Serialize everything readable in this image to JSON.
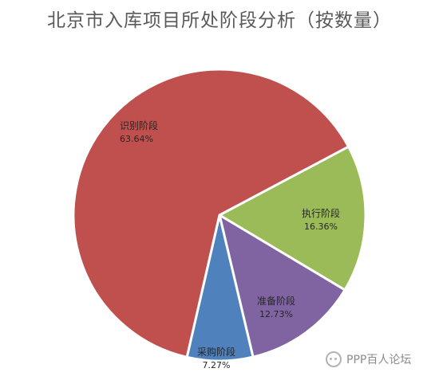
{
  "chart_data": {
    "type": "pie",
    "title": "北京市入库项目所处阶段分析（按数量）",
    "slices": [
      {
        "label": "识别阶段",
        "percent_label": "63.64%",
        "value": 63.64,
        "color": "#c0504d"
      },
      {
        "label": "执行阶段",
        "percent_label": "16.36%",
        "value": 16.36,
        "color": "#9bbb59"
      },
      {
        "label": "准备阶段",
        "percent_label": "12.73%",
        "value": 12.73,
        "color": "#8064a2"
      },
      {
        "label": "采购阶段",
        "percent_label": "7.27%",
        "value": 7.27,
        "color": "#4f81bd"
      }
    ]
  },
  "watermark": {
    "text": "PPP百人论坛",
    "icon": "wechat-icon"
  }
}
